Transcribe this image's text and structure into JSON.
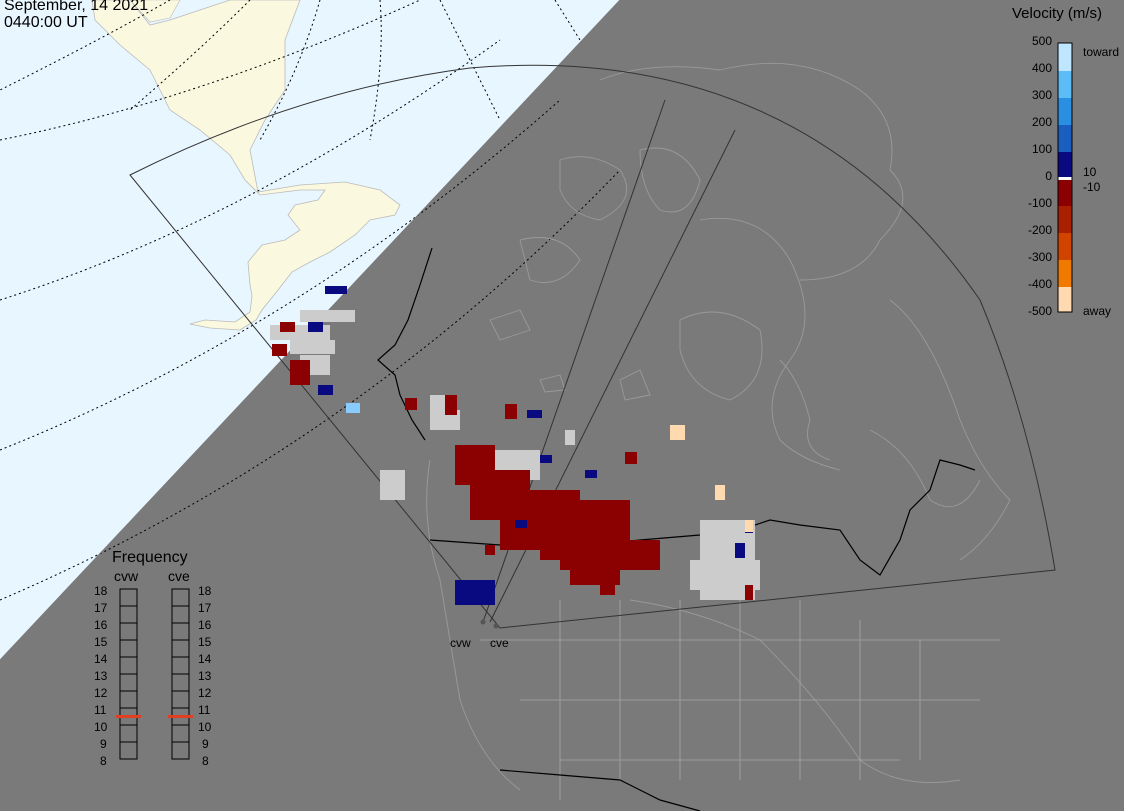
{
  "header": {
    "date": "September, 14 2021",
    "time": "0440:00 UT"
  },
  "colors": {
    "background": "#7a7a7a",
    "ocean": "#e8f6ff",
    "land_shown": "#fbf8e0",
    "scatter_ground": "#cccccc",
    "vel_neg_strong": "#8b0000",
    "vel_pos_strong": "#0a0a80",
    "vel_pos_light": "#88ccff",
    "vel_neg_light": "#ffd9b0",
    "frequency_marker": "#e04020"
  },
  "velocity_scale": {
    "title": "Velocity (m/s)",
    "ticks": [
      "500",
      "400",
      "300",
      "200",
      "100",
      "0",
      "-100",
      "-200",
      "-300",
      "-400",
      "-500"
    ],
    "toward_label": "toward",
    "away_label": "away",
    "inner_pos": "10",
    "inner_neg": "-10"
  },
  "frequency_panel": {
    "title": "Frequency",
    "radars": [
      {
        "name": "cvw",
        "value_mhz": 10.5
      },
      {
        "name": "cve",
        "value_mhz": 10.5
      }
    ],
    "ticks": [
      "18",
      "17",
      "16",
      "15",
      "14",
      "13",
      "12",
      "11",
      "10",
      "9",
      "8"
    ]
  },
  "sites": [
    {
      "label": "cvw"
    },
    {
      "label": "cve"
    }
  ]
}
